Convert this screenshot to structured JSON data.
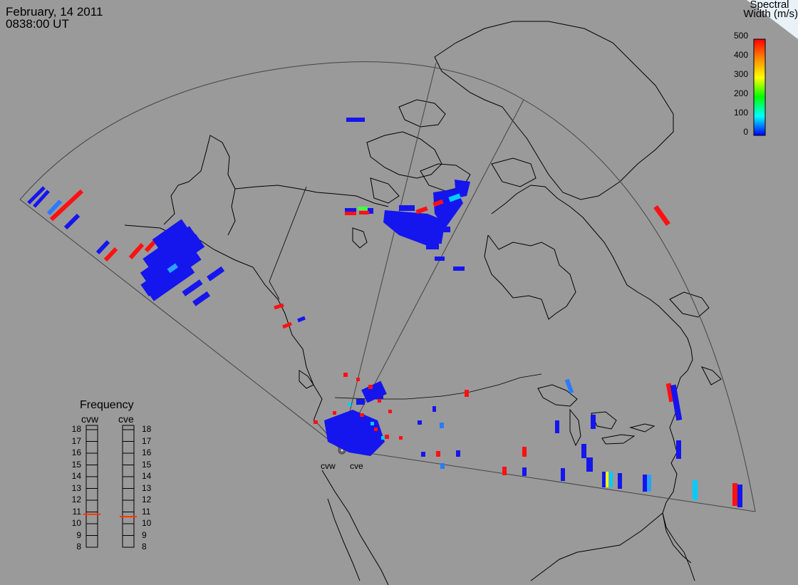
{
  "header": {
    "date": "February, 14 2011",
    "time": "0838:00 UT"
  },
  "colorbar": {
    "title_line1": "Spectral",
    "title_line2": "Width (m/s)",
    "ticks": [
      "500",
      "400",
      "300",
      "200",
      "100",
      "0"
    ],
    "range": [
      0,
      500
    ],
    "gradient_colors": [
      "#ff0000",
      "#ff8800",
      "#ffff00",
      "#00ff00",
      "#00ffff",
      "#0000ff"
    ]
  },
  "radars": {
    "west_label": "cvw",
    "east_label": "cve"
  },
  "frequency_panel": {
    "title": "Frequency",
    "left_label": "cvw",
    "right_label": "cve",
    "levels": [
      "18",
      "17",
      "16",
      "15",
      "14",
      "13",
      "12",
      "11",
      "10",
      "9",
      "8"
    ],
    "cvw_value": 10.8,
    "cve_value": 10.6,
    "marker_color": "#ff3300"
  },
  "colors": {
    "background": "#9a9a9a",
    "low_width": "#1010ee",
    "high_width": "#ff1010",
    "mid_width": "#00ccff"
  }
}
